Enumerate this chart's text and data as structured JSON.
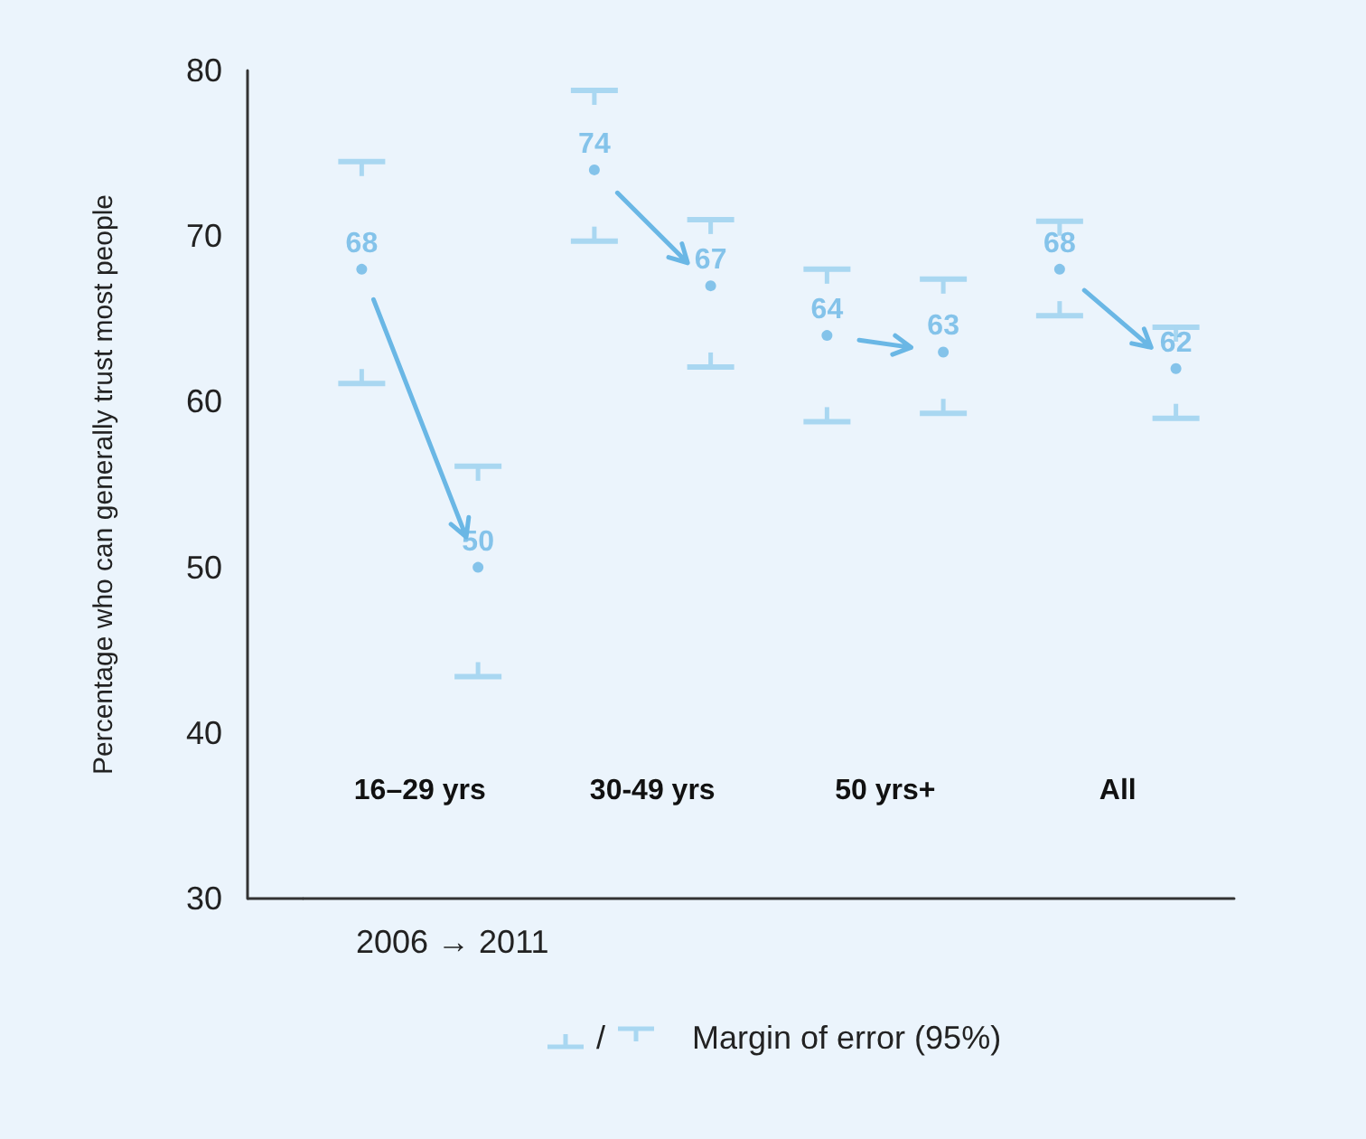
{
  "chart_data": {
    "type": "scatter",
    "ylabel": "Percentage who can generally trust most people",
    "categories": [
      null,
      null,
      null,
      null,
      null,
      null,
      null,
      null
    ],
    "series": [
      {
        "color": "#6ab7e5",
        "values": [
          68,
          null,
          74,
          null,
          64,
          null,
          68,
          null
        ],
        "errors": [
          [
            61.1,
            74.5
          ],
          null,
          [
            69.7,
            78.8
          ],
          null,
          [
            58.8,
            68.0
          ],
          null,
          [
            65.2,
            70.9
          ],
          null
        ]
      },
      {
        "color": "#6ab7e5",
        "values": [
          null,
          50,
          null,
          67,
          null,
          63,
          null,
          62
        ],
        "errors": [
          null,
          [
            43.4,
            56.1
          ],
          null,
          [
            62.1,
            71.0
          ],
          null,
          [
            59.3,
            67.4
          ],
          null,
          [
            59.0,
            64.5
          ]
        ]
      }
    ],
    "ylim": [
      30,
      80
    ],
    "yticks": [
      30,
      40,
      50,
      60,
      70,
      80
    ],
    "data_labels": true,
    "marker": "circle",
    "grid": false,
    "annotations": [
      "16–29 yrs",
      "30-49 yrs",
      "50 yrs+",
      "All",
      "2006 → 2011",
      "/",
      "Margin of error (95%)"
    ]
  }
}
